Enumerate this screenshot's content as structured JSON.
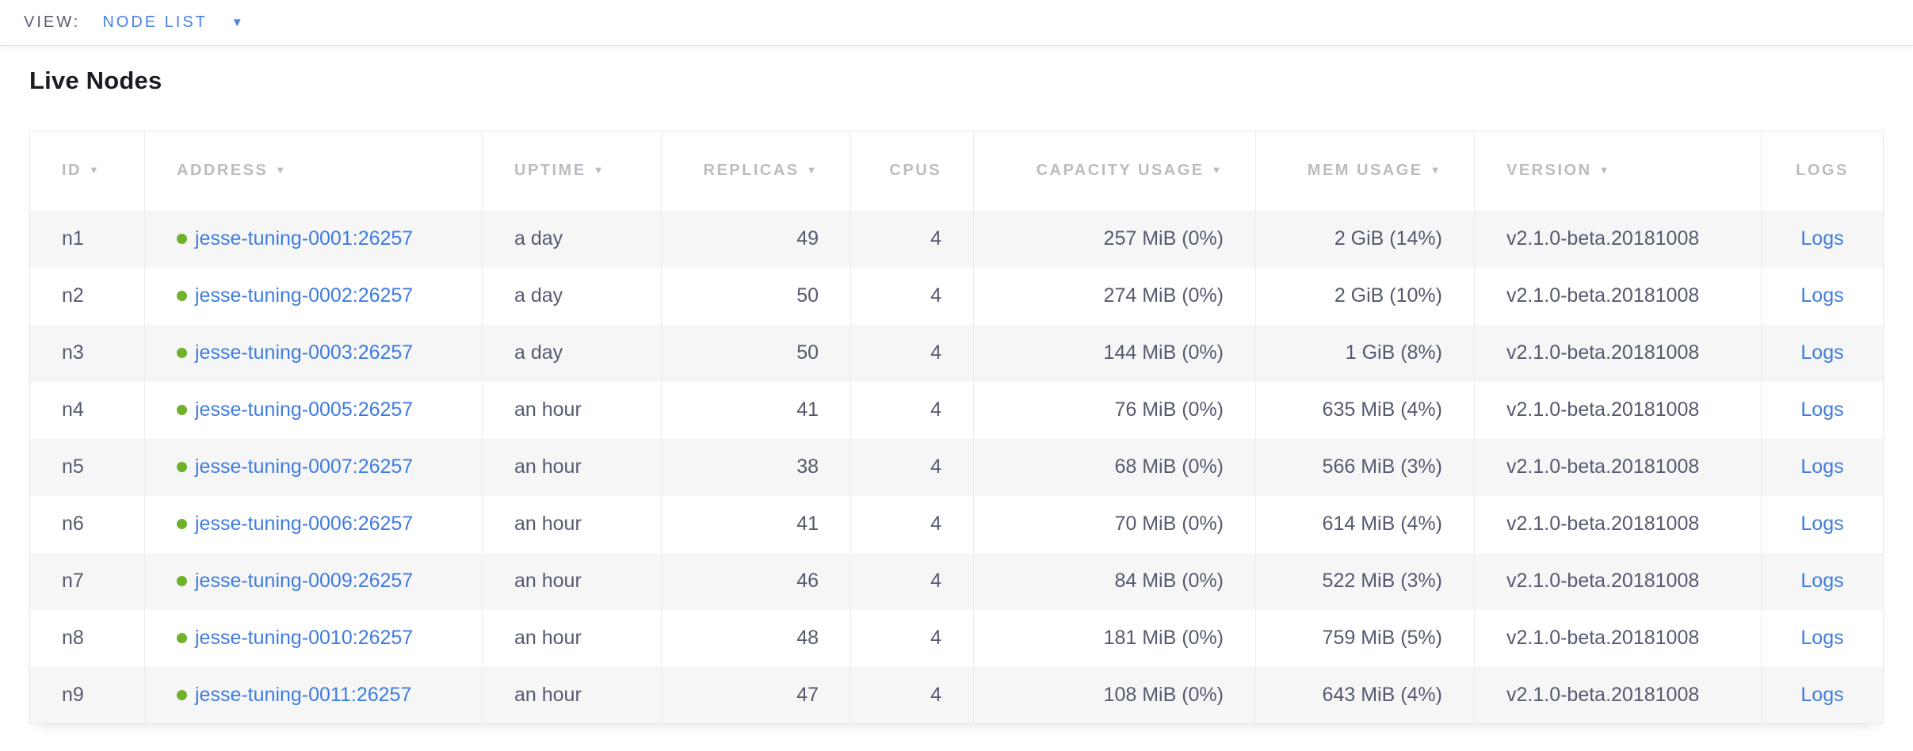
{
  "view_bar": {
    "label": "VIEW:",
    "selected": "NODE LIST"
  },
  "page": {
    "title": "Live Nodes"
  },
  "icons": {
    "sort_desc": "▼",
    "dropdown": "▼",
    "live_status_dot": "●"
  },
  "colors": {
    "link_blue": "#3f7ce0",
    "view_accent_blue": "#4a82e6",
    "live_green": "#6fb229",
    "header_gray": "#b9bcc1",
    "body_text": "#545b6e",
    "row_stripe": "#f6f6f7",
    "table_border": "#e7e7e7"
  },
  "table": {
    "columns": [
      {
        "key": "id",
        "label": "ID",
        "sortable": true,
        "align": "left"
      },
      {
        "key": "address",
        "label": "ADDRESS",
        "sortable": true,
        "align": "left"
      },
      {
        "key": "uptime",
        "label": "UPTIME",
        "sortable": true,
        "align": "left"
      },
      {
        "key": "replicas",
        "label": "REPLICAS",
        "sortable": true,
        "align": "right"
      },
      {
        "key": "cpus",
        "label": "CPUS",
        "sortable": false,
        "align": "right"
      },
      {
        "key": "capacity_usage",
        "label": "CAPACITY USAGE",
        "sortable": true,
        "align": "right"
      },
      {
        "key": "mem_usage",
        "label": "MEM USAGE",
        "sortable": true,
        "align": "right"
      },
      {
        "key": "version",
        "label": "VERSION",
        "sortable": true,
        "align": "left"
      },
      {
        "key": "logs",
        "label": "LOGS",
        "sortable": false,
        "align": "center"
      }
    ],
    "rows": [
      {
        "id": "n1",
        "status": "live",
        "address": "jesse-tuning-0001:26257",
        "uptime": "a day",
        "replicas": "49",
        "cpus": "4",
        "capacity_usage": "257 MiB (0%)",
        "mem_usage": "2 GiB (14%)",
        "version": "v2.1.0-beta.20181008",
        "logs_label": "Logs"
      },
      {
        "id": "n2",
        "status": "live",
        "address": "jesse-tuning-0002:26257",
        "uptime": "a day",
        "replicas": "50",
        "cpus": "4",
        "capacity_usage": "274 MiB (0%)",
        "mem_usage": "2 GiB (10%)",
        "version": "v2.1.0-beta.20181008",
        "logs_label": "Logs"
      },
      {
        "id": "n3",
        "status": "live",
        "address": "jesse-tuning-0003:26257",
        "uptime": "a day",
        "replicas": "50",
        "cpus": "4",
        "capacity_usage": "144 MiB (0%)",
        "mem_usage": "1 GiB (8%)",
        "version": "v2.1.0-beta.20181008",
        "logs_label": "Logs"
      },
      {
        "id": "n4",
        "status": "live",
        "address": "jesse-tuning-0005:26257",
        "uptime": "an hour",
        "replicas": "41",
        "cpus": "4",
        "capacity_usage": "76 MiB (0%)",
        "mem_usage": "635 MiB (4%)",
        "version": "v2.1.0-beta.20181008",
        "logs_label": "Logs"
      },
      {
        "id": "n5",
        "status": "live",
        "address": "jesse-tuning-0007:26257",
        "uptime": "an hour",
        "replicas": "38",
        "cpus": "4",
        "capacity_usage": "68 MiB (0%)",
        "mem_usage": "566 MiB (3%)",
        "version": "v2.1.0-beta.20181008",
        "logs_label": "Logs"
      },
      {
        "id": "n6",
        "status": "live",
        "address": "jesse-tuning-0006:26257",
        "uptime": "an hour",
        "replicas": "41",
        "cpus": "4",
        "capacity_usage": "70 MiB (0%)",
        "mem_usage": "614 MiB (4%)",
        "version": "v2.1.0-beta.20181008",
        "logs_label": "Logs"
      },
      {
        "id": "n7",
        "status": "live",
        "address": "jesse-tuning-0009:26257",
        "uptime": "an hour",
        "replicas": "46",
        "cpus": "4",
        "capacity_usage": "84 MiB (0%)",
        "mem_usage": "522 MiB (3%)",
        "version": "v2.1.0-beta.20181008",
        "logs_label": "Logs"
      },
      {
        "id": "n8",
        "status": "live",
        "address": "jesse-tuning-0010:26257",
        "uptime": "an hour",
        "replicas": "48",
        "cpus": "4",
        "capacity_usage": "181 MiB (0%)",
        "mem_usage": "759 MiB (5%)",
        "version": "v2.1.0-beta.20181008",
        "logs_label": "Logs"
      },
      {
        "id": "n9",
        "status": "live",
        "address": "jesse-tuning-0011:26257",
        "uptime": "an hour",
        "replicas": "47",
        "cpus": "4",
        "capacity_usage": "108 MiB (0%)",
        "mem_usage": "643 MiB (4%)",
        "version": "v2.1.0-beta.20181008",
        "logs_label": "Logs"
      }
    ]
  }
}
